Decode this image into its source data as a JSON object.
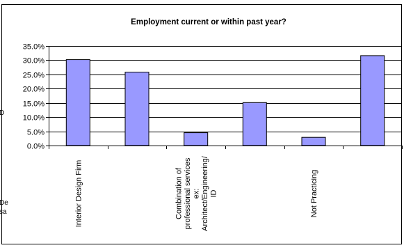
{
  "chart_data": {
    "type": "bar",
    "title": "Employment current or within past year?",
    "categories": [
      "Interior Design Firm",
      "",
      "Combination of professional services ex: Architect/Engineering/ ID",
      "",
      "Not Practicing",
      ""
    ],
    "category_label_lines": [
      [
        "Interior Design Firm"
      ],
      [],
      [
        "Combination of",
        "professional services",
        "ex:",
        "Architect/Engineering/",
        "ID"
      ],
      [],
      [
        "Not Practicing"
      ],
      []
    ],
    "values": [
      30.2,
      25.8,
      4.5,
      15.1,
      2.9,
      31.6
    ],
    "ylim": [
      0,
      35
    ],
    "yticks": [
      "0.0%",
      "5.0%",
      "10.0%",
      "15.0%",
      "20.0%",
      "25.0%",
      "30.0%",
      "35.0%"
    ],
    "grid": true,
    "bar_color": "#9999ff",
    "edge_fragments": [
      "D",
      "De",
      "sa"
    ]
  }
}
